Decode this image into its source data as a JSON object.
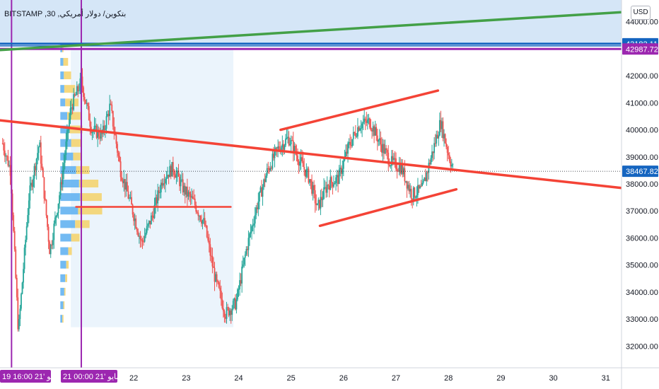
{
  "header": {
    "title": "BITSTAMP ,30 ,بتكوين/ دولار أمريكي",
    "currency_button": "USD"
  },
  "price_badges": [
    {
      "value": "43182.11",
      "color": "#1565c0"
    },
    {
      "value": "42987.72",
      "color": "#9c27b0"
    },
    {
      "value": "38467.82",
      "color": "#1565c0"
    }
  ],
  "time_badges": [
    {
      "label": "19 مايو '21   16:00"
    },
    {
      "label": "21 مايو '21   00:00"
    }
  ],
  "colors": {
    "up": "#26a69a",
    "down": "#ef5350",
    "trend_red": "#f44336",
    "trend_green": "#43a047",
    "purple": "#9c27b0",
    "blue": "#1565c0",
    "zone_blue": "#d5e6f7",
    "vp_blue": "#5aaef0",
    "vp_yellow": "#f5d167"
  },
  "chart_data": {
    "type": "candlestick",
    "y_axis": {
      "ticks": [
        32000,
        33000,
        34000,
        35000,
        36000,
        37000,
        38000,
        39000,
        40000,
        41000,
        42000,
        43000,
        44000
      ],
      "tick_labels": [
        "32000.00",
        "33000.00",
        "34000.00",
        "35000.00",
        "36000.00",
        "37000.00",
        "38000.00",
        "39000.00",
        "40000.00",
        "41000.00",
        "42000.00",
        "43000.00",
        "44000.00"
      ],
      "range": [
        31200,
        44800
      ]
    },
    "x_axis": {
      "ticks": [
        "22",
        "23",
        "24",
        "25",
        "26",
        "27",
        "28",
        "29",
        "30",
        "31"
      ],
      "range_days": [
        19.45,
        31.3
      ]
    },
    "last_price": 38467.82,
    "horizontal_levels": [
      43182.11,
      42987.72
    ],
    "vertical_markers_day": [
      19.67,
      21.0
    ],
    "series": [
      {
        "name": "price",
        "points": [
          [
            19.5,
            39500
          ],
          [
            19.65,
            38500
          ],
          [
            19.8,
            32500
          ],
          [
            20.0,
            37500
          ],
          [
            20.2,
            39500
          ],
          [
            20.4,
            35500
          ],
          [
            20.6,
            37800
          ],
          [
            20.8,
            40800
          ],
          [
            21.0,
            41800
          ],
          [
            21.2,
            40000
          ],
          [
            21.4,
            39800
          ],
          [
            21.55,
            40900
          ],
          [
            21.75,
            38500
          ],
          [
            21.95,
            37200
          ],
          [
            22.15,
            35800
          ],
          [
            22.35,
            36800
          ],
          [
            22.55,
            38200
          ],
          [
            22.75,
            38600
          ],
          [
            22.95,
            37800
          ],
          [
            23.15,
            37300
          ],
          [
            23.35,
            36500
          ],
          [
            23.55,
            34500
          ],
          [
            23.75,
            33200
          ],
          [
            23.95,
            33600
          ],
          [
            24.15,
            35600
          ],
          [
            24.35,
            37200
          ],
          [
            24.55,
            38500
          ],
          [
            24.75,
            39300
          ],
          [
            24.95,
            39700
          ],
          [
            25.15,
            38900
          ],
          [
            25.35,
            38200
          ],
          [
            25.5,
            37100
          ],
          [
            25.7,
            38000
          ],
          [
            25.9,
            38200
          ],
          [
            26.1,
            39400
          ],
          [
            26.3,
            40200
          ],
          [
            26.5,
            40300
          ],
          [
            26.7,
            39500
          ],
          [
            26.9,
            38800
          ],
          [
            27.1,
            38600
          ],
          [
            27.3,
            37600
          ],
          [
            27.5,
            37800
          ],
          [
            27.7,
            39200
          ],
          [
            27.85,
            40300
          ],
          [
            28.0,
            39100
          ],
          [
            28.1,
            38467.82
          ]
        ]
      }
    ],
    "trend_lines": [
      {
        "name": "descending-trendline",
        "from": [
          19.45,
          40350
        ],
        "to": [
          31.3,
          37850
        ],
        "color": "red"
      },
      {
        "name": "channel-upper",
        "from": [
          24.8,
          40000
        ],
        "to": [
          27.8,
          41450
        ],
        "color": "red"
      },
      {
        "name": "channel-lower",
        "from": [
          25.55,
          36450
        ],
        "to": [
          28.15,
          37800
        ],
        "color": "red"
      },
      {
        "name": "level-segment",
        "from": [
          20.9,
          37150
        ],
        "to": [
          23.85,
          37150
        ],
        "color": "red"
      },
      {
        "name": "green-trendline",
        "from": [
          19.45,
          42950
        ],
        "to": [
          31.3,
          44350
        ],
        "color": "green"
      }
    ],
    "volume_profile": {
      "price_bins": [
        43000,
        42500,
        42000,
        41500,
        41000,
        40500,
        40000,
        39500,
        39000,
        38500,
        38000,
        37500,
        37000,
        36500,
        36000,
        35500,
        35000,
        34500,
        34000,
        33500,
        33000
      ],
      "buy": [
        0.1,
        0.15,
        0.18,
        0.2,
        0.25,
        0.35,
        0.45,
        0.55,
        0.65,
        0.8,
        0.95,
        1.0,
        0.9,
        0.75,
        0.55,
        0.4,
        0.3,
        0.25,
        0.2,
        0.15,
        0.1
      ],
      "sell": [
        0.05,
        0.2,
        0.3,
        0.45,
        0.55,
        0.6,
        0.55,
        0.4,
        0.35,
        0.55,
        0.8,
        0.9,
        1.0,
        0.6,
        0.35,
        0.15,
        0.1,
        0.08,
        0.05,
        0.05,
        0.05
      ]
    },
    "zones": [
      {
        "name": "upper-zone",
        "from_price": 43182.11,
        "to_price": 44800
      },
      {
        "name": "profile-zone",
        "from_day": 20.8,
        "to_day": 23.9,
        "from_price": 32700,
        "to_price": 43000
      }
    ]
  }
}
